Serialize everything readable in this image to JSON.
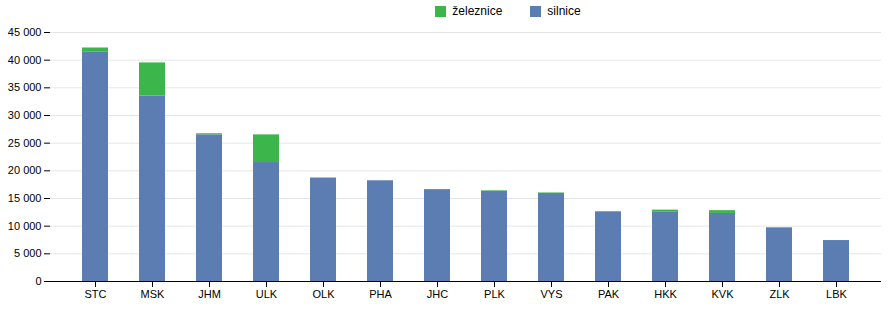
{
  "chart_data": {
    "type": "bar",
    "stacked": true,
    "categories": [
      "STC",
      "MSK",
      "JHM",
      "ULK",
      "OLK",
      "PHA",
      "JHC",
      "PLK",
      "VYS",
      "PAK",
      "HKK",
      "KVK",
      "ZLK",
      "LBK"
    ],
    "series": [
      {
        "name": "silnice",
        "color": "#5b7db1",
        "values": [
          41500,
          33500,
          26500,
          21500,
          18700,
          18200,
          16600,
          16300,
          15900,
          12600,
          12600,
          12300,
          9700,
          7400
        ]
      },
      {
        "name": "železnice",
        "color": "#3cb54a",
        "values": [
          700,
          6000,
          200,
          5000,
          0,
          0,
          0,
          100,
          100,
          0,
          300,
          500,
          0,
          0
        ]
      }
    ],
    "ylim": [
      0,
      45000
    ],
    "yticks": [
      0,
      {
        "value": 5000,
        "label": "5 000"
      },
      {
        "value": 10000,
        "label": "10 000"
      },
      {
        "value": 15000,
        "label": "15 000"
      },
      {
        "value": 20000,
        "label": "20 000"
      },
      {
        "value": 25000,
        "label": "25 000"
      },
      {
        "value": 30000,
        "label": "30 000"
      },
      {
        "value": 35000,
        "label": "35 000"
      },
      {
        "value": 40000,
        "label": "40 000"
      },
      {
        "value": 45000,
        "label": "45 000"
      }
    ],
    "grid": true,
    "legend": "top"
  }
}
